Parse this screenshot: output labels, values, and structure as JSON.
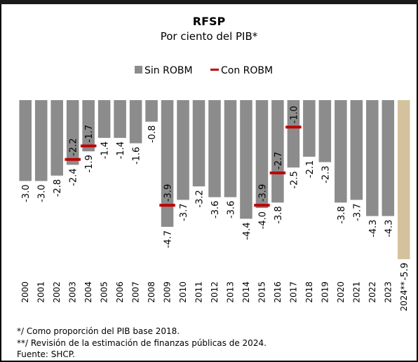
{
  "chart_data": {
    "type": "bar",
    "title": "RFSP",
    "subtitle": "Por ciento del PIB*",
    "categories": [
      "2000",
      "2001",
      "2002",
      "2003",
      "2004",
      "2005",
      "2006",
      "2007",
      "2008",
      "2009",
      "2010",
      "2011",
      "2012",
      "2013",
      "2014",
      "2015",
      "2016",
      "2017",
      "2018",
      "2019",
      "2020",
      "2021",
      "2022",
      "2023",
      "2024**"
    ],
    "series": [
      {
        "name": "Sin ROBM",
        "color": "#8c8c8c",
        "colors": [
          "#8c8c8c",
          "#8c8c8c",
          "#8c8c8c",
          "#8c8c8c",
          "#8c8c8c",
          "#8c8c8c",
          "#8c8c8c",
          "#8c8c8c",
          "#8c8c8c",
          "#8c8c8c",
          "#8c8c8c",
          "#8c8c8c",
          "#8c8c8c",
          "#8c8c8c",
          "#8c8c8c",
          "#8c8c8c",
          "#8c8c8c",
          "#8c8c8c",
          "#8c8c8c",
          "#8c8c8c",
          "#8c8c8c",
          "#8c8c8c",
          "#8c8c8c",
          "#8c8c8c",
          "#d4c29c"
        ],
        "values": [
          -3.0,
          -3.0,
          -2.8,
          -2.4,
          -1.9,
          -1.4,
          -1.4,
          -1.6,
          -0.8,
          -4.7,
          -3.7,
          -3.2,
          -3.6,
          -3.6,
          -4.4,
          -4.0,
          -3.8,
          -2.5,
          -2.1,
          -2.3,
          -3.8,
          -3.7,
          -4.3,
          -4.3,
          -5.9
        ],
        "value_labels": [
          "-3.0",
          "-3.0",
          "-2.8",
          "-2.4",
          "-1.9",
          "-1.4",
          "-1.4",
          "-1.6",
          "-0.8",
          "-4.7",
          "-3.7",
          "-3.2",
          "-3.6",
          "-3.6",
          "-4.4",
          "-4.0",
          "-3.8",
          "-2.5",
          "-2.1",
          "-2.3",
          "-3.8",
          "-3.7",
          "-4.3",
          "-4.3",
          "-5.9"
        ]
      },
      {
        "name": "Con ROBM",
        "color": "#c00000",
        "values": [
          null,
          null,
          null,
          -2.2,
          -1.7,
          null,
          null,
          null,
          null,
          -3.9,
          null,
          null,
          null,
          null,
          null,
          -3.9,
          -2.7,
          -1.0,
          null,
          null,
          null,
          null,
          null,
          null,
          null
        ],
        "value_labels": [
          null,
          null,
          null,
          "-2.2",
          "-1.7",
          null,
          null,
          null,
          null,
          "-3.9",
          null,
          null,
          null,
          null,
          null,
          "-3.9",
          "-2.7",
          "-1.0",
          null,
          null,
          null,
          null,
          null,
          null,
          null
        ]
      }
    ],
    "ylim": [
      -6,
      0
    ],
    "notes": [
      "*/ Como proporción del PIB base 2018.",
      "**/ Revisión de la estimación de finanzas públicas de 2024.",
      "Fuente: SHCP."
    ]
  }
}
